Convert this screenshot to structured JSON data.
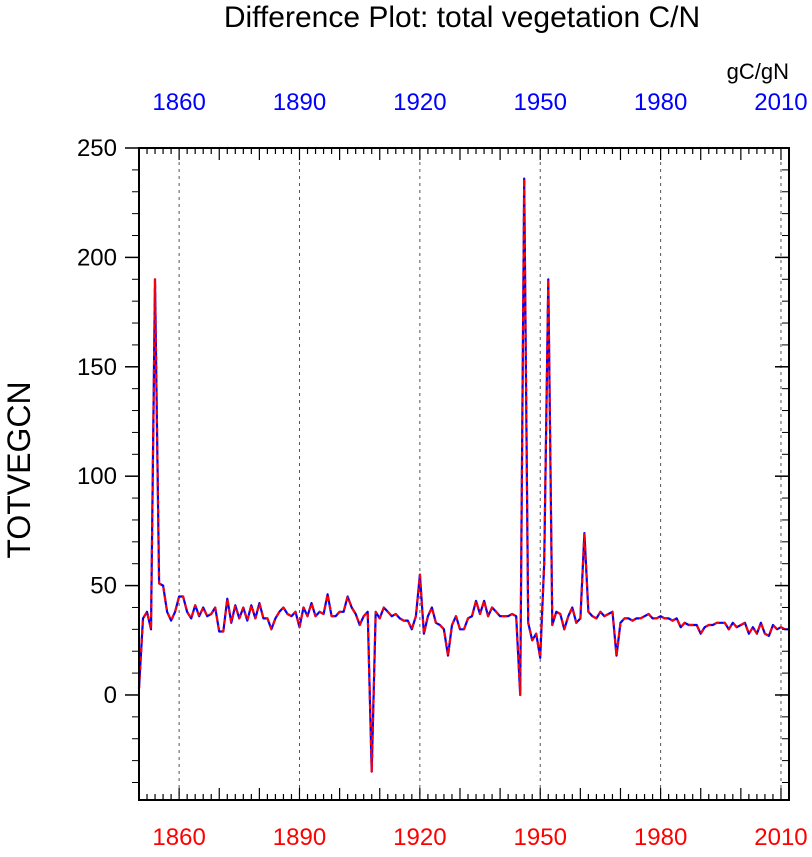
{
  "chart_data": {
    "type": "line",
    "title": "Difference Plot: total vegetation C/N",
    "ylabel": "TOTVEGCN",
    "units": "gC/gN",
    "xlim": [
      1850,
      2012
    ],
    "ylim": [
      -48,
      250
    ],
    "x_ticks": [
      1860,
      1890,
      1920,
      1950,
      1980,
      2010
    ],
    "y_ticks": [
      0,
      50,
      100,
      150,
      200,
      250
    ],
    "top_tick_color": "#0000ff",
    "bottom_tick_color": "#ff0000",
    "grid": "vertical dashed at labeled years",
    "series": [
      {
        "line_color": "#0000ff",
        "dash_color": "#ff0000",
        "x": [
          1850,
          1851,
          1852,
          1853,
          1854,
          1855,
          1856,
          1857,
          1858,
          1859,
          1860,
          1861,
          1862,
          1863,
          1864,
          1865,
          1866,
          1867,
          1868,
          1869,
          1870,
          1871,
          1872,
          1873,
          1874,
          1875,
          1876,
          1877,
          1878,
          1879,
          1880,
          1881,
          1882,
          1883,
          1884,
          1885,
          1886,
          1887,
          1888,
          1889,
          1890,
          1891,
          1892,
          1893,
          1894,
          1895,
          1896,
          1897,
          1898,
          1899,
          1900,
          1901,
          1902,
          1903,
          1904,
          1905,
          1906,
          1907,
          1908,
          1909,
          1910,
          1911,
          1912,
          1913,
          1914,
          1915,
          1916,
          1917,
          1918,
          1919,
          1920,
          1921,
          1922,
          1923,
          1924,
          1925,
          1926,
          1927,
          1928,
          1929,
          1930,
          1931,
          1932,
          1933,
          1934,
          1935,
          1936,
          1937,
          1938,
          1939,
          1940,
          1941,
          1942,
          1943,
          1944,
          1945,
          1946,
          1947,
          1948,
          1949,
          1950,
          1951,
          1952,
          1953,
          1954,
          1955,
          1956,
          1957,
          1958,
          1959,
          1960,
          1961,
          1962,
          1963,
          1964,
          1965,
          1966,
          1967,
          1968,
          1969,
          1970,
          1971,
          1972,
          1973,
          1974,
          1975,
          1976,
          1977,
          1978,
          1979,
          1980,
          1981,
          1982,
          1983,
          1984,
          1985,
          1986,
          1987,
          1988,
          1989,
          1990,
          1991,
          1992,
          1993,
          1994,
          1995,
          1996,
          1997,
          1998,
          1999,
          2000,
          2001,
          2002,
          2003,
          2004,
          2005,
          2006,
          2007,
          2008,
          2009,
          2010,
          2011,
          2012
        ],
        "y": [
          3,
          35,
          38,
          30,
          190,
          51,
          50,
          38,
          34,
          38,
          45,
          45,
          38,
          35,
          41,
          36,
          40,
          36,
          37,
          40,
          29,
          29,
          44,
          33,
          41,
          35,
          40,
          34,
          41,
          35,
          42,
          35,
          35,
          30,
          35,
          38,
          40,
          37,
          36,
          38,
          31,
          40,
          36,
          42,
          36,
          38,
          37,
          46,
          36,
          36,
          38,
          38,
          45,
          40,
          37,
          32,
          36,
          38,
          -35,
          38,
          35,
          40,
          38,
          36,
          37,
          35,
          34,
          34,
          30,
          36,
          55,
          28,
          36,
          40,
          33,
          32,
          30,
          18,
          32,
          36,
          30,
          30,
          35,
          36,
          43,
          37,
          43,
          36,
          40,
          38,
          36,
          36,
          36,
          37,
          36,
          0,
          236,
          33,
          25,
          28,
          17,
          60,
          190,
          32,
          38,
          37,
          30,
          36,
          40,
          33,
          35,
          74,
          38,
          36,
          35,
          38,
          36,
          37,
          38,
          18,
          33,
          35,
          35,
          34,
          35,
          35,
          36,
          37,
          35,
          35,
          36,
          35,
          35,
          34,
          35,
          31,
          33,
          32,
          32,
          32,
          28,
          31,
          32,
          32,
          33,
          33,
          33,
          30,
          33,
          31,
          32,
          33,
          28,
          31,
          28,
          33,
          28,
          27,
          32,
          30,
          31,
          30,
          30
        ]
      }
    ]
  }
}
